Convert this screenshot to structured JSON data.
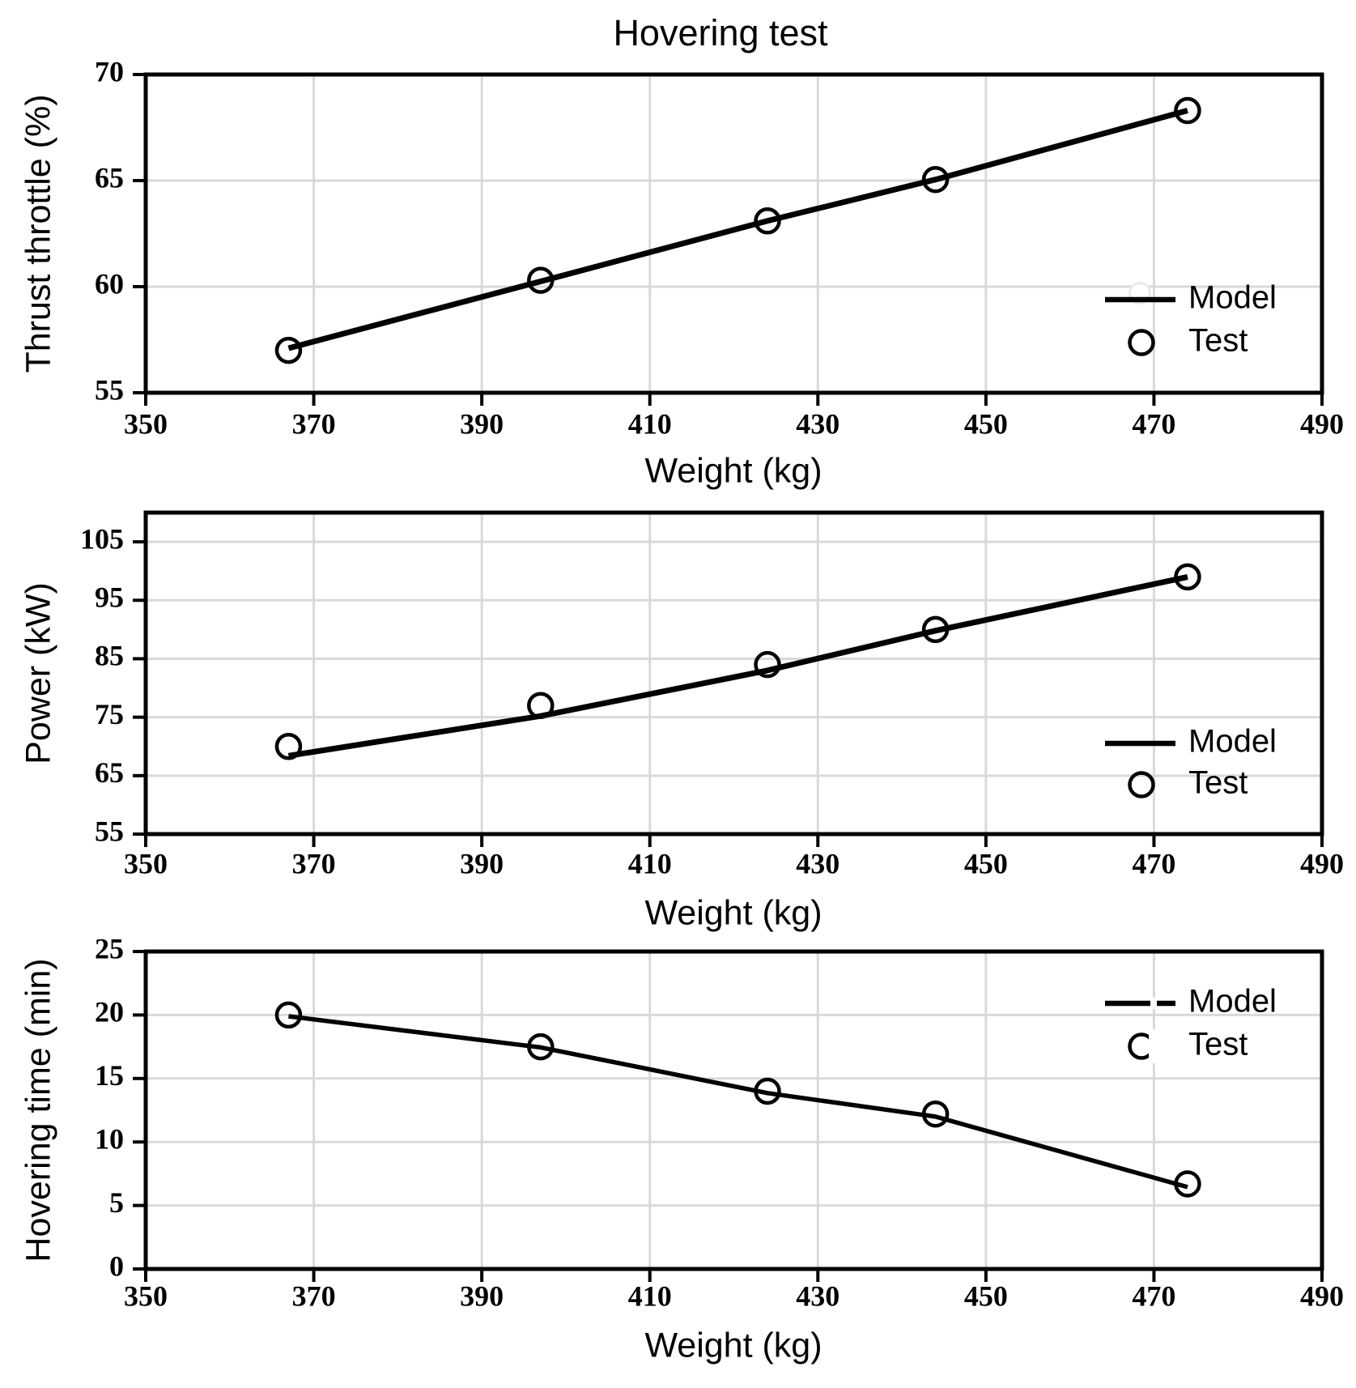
{
  "figure_title": "Hovering test",
  "colors": {
    "series": "#000000",
    "grid": "#d9d9d9",
    "background": "#ffffff",
    "text": "#000000"
  },
  "chart_data": [
    {
      "type": "line",
      "title": "Hovering test",
      "xlabel": "Weight (kg)",
      "ylabel": "Thrust throttle (%)",
      "xlim": [
        350,
        490
      ],
      "xticks": [
        350,
        370,
        390,
        410,
        430,
        450,
        470,
        490
      ],
      "ylim": [
        55,
        70
      ],
      "yticks": [
        55,
        60,
        65,
        70
      ],
      "grid": true,
      "legend_position": "right-middle",
      "x": [
        367,
        397,
        424,
        444,
        474
      ],
      "series": [
        {
          "name": "Model",
          "kind": "line",
          "values": [
            57.1,
            60.25,
            63.1,
            65.05,
            68.3
          ]
        },
        {
          "name": "Test",
          "kind": "scatter",
          "values": [
            57.0,
            60.3,
            63.1,
            65.05,
            68.3
          ]
        }
      ]
    },
    {
      "type": "line",
      "title": "",
      "xlabel": "Weight (kg)",
      "ylabel": "Power (kW)",
      "xlim": [
        350,
        490
      ],
      "xticks": [
        350,
        370,
        390,
        410,
        430,
        450,
        470,
        490
      ],
      "ylim": [
        55,
        110
      ],
      "yticks": [
        55,
        65,
        75,
        85,
        95,
        105
      ],
      "grid": true,
      "legend_position": "right-bottom",
      "x": [
        367,
        397,
        424,
        444,
        474
      ],
      "series": [
        {
          "name": "Model",
          "kind": "line",
          "values": [
            68.4,
            75.2,
            83.0,
            89.8,
            99.0
          ]
        },
        {
          "name": "Test",
          "kind": "scatter",
          "values": [
            70.0,
            77.0,
            84.0,
            90.0,
            99.0
          ]
        }
      ]
    },
    {
      "type": "line",
      "title": "",
      "xlabel": "Weight (kg)",
      "ylabel": "Hovering time (min)",
      "xlim": [
        350,
        490
      ],
      "xticks": [
        350,
        370,
        390,
        410,
        430,
        450,
        470,
        490
      ],
      "ylim": [
        0,
        25
      ],
      "yticks": [
        0,
        5,
        10,
        15,
        20,
        25
      ],
      "grid": true,
      "legend_position": "right-top",
      "x": [
        367,
        397,
        424,
        444,
        474
      ],
      "series": [
        {
          "name": "Model",
          "kind": "line",
          "values": [
            19.9,
            17.45,
            13.85,
            12.0,
            6.45
          ]
        },
        {
          "name": "Test",
          "kind": "scatter",
          "values": [
            20.0,
            17.5,
            14.0,
            12.2,
            6.7
          ]
        }
      ]
    }
  ]
}
